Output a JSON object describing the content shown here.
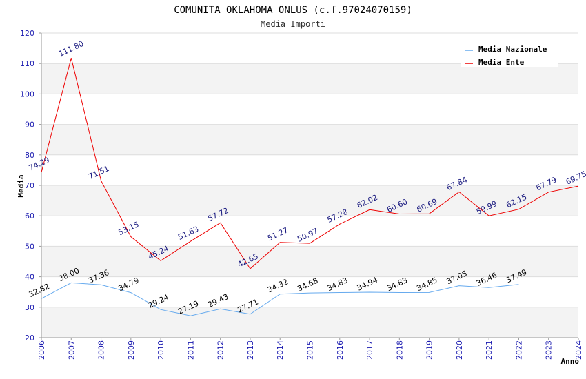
{
  "chart_data": {
    "type": "line",
    "title": "COMUNITA OKLAHOMA ONLUS (c.f.97024070159)",
    "subtitle": "Media Importi",
    "xlabel": "Anno",
    "ylabel": "Media",
    "ylim": [
      20,
      120
    ],
    "yticks": [
      20,
      30,
      40,
      50,
      60,
      70,
      80,
      90,
      100,
      110,
      120
    ],
    "categories": [
      "2006",
      "2007",
      "2008",
      "2009",
      "2010",
      "2011",
      "2012",
      "2013",
      "2014",
      "2015",
      "2016",
      "2017",
      "2018",
      "2019",
      "2020",
      "2021",
      "2022",
      "2023",
      "2024"
    ],
    "legend_position": "top-right",
    "series": [
      {
        "name": "Media Nazionale",
        "color": "#66aaee",
        "values": [
          32.82,
          38.0,
          37.36,
          34.79,
          29.24,
          27.19,
          29.43,
          27.71,
          34.32,
          34.68,
          34.83,
          34.94,
          34.83,
          34.85,
          37.05,
          36.46,
          37.49,
          null,
          null
        ],
        "labels": [
          "32.82",
          "38.00",
          "37.36",
          "34.79",
          "29.24",
          "27.19",
          "29.43",
          "27.71",
          "34.32",
          "34.68",
          "34.83",
          "34.94",
          "34.83",
          "34.85",
          "37.05",
          "36.46",
          "37.49",
          null,
          null
        ]
      },
      {
        "name": "Media Ente",
        "color": "#ee0000",
        "values": [
          74.29,
          111.8,
          71.51,
          53.15,
          45.24,
          51.63,
          57.72,
          42.65,
          51.27,
          50.97,
          57.28,
          62.02,
          60.6,
          60.69,
          67.84,
          59.99,
          62.15,
          67.79,
          69.75
        ],
        "labels": [
          "74.29",
          "111.80",
          "71.51",
          "53.15",
          "45.24",
          "51.63",
          "57.72",
          "42.65",
          "51.27",
          "50.97",
          "57.28",
          "62.02",
          "60.60",
          "60.69",
          "67.84",
          "59.99",
          "62.15",
          "67.79",
          "69.75"
        ]
      }
    ]
  }
}
